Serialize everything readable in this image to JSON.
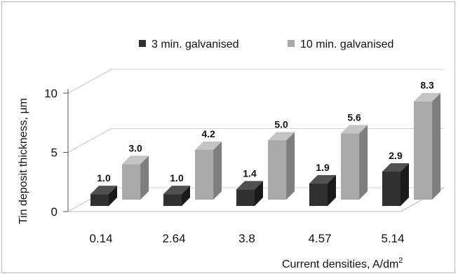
{
  "chart_data": {
    "type": "bar",
    "view": "3d-clustered-column",
    "categories": [
      "0.14",
      "2.64",
      "3.8",
      "4.57",
      "5.14"
    ],
    "series": [
      {
        "name": "3 min. galvanised",
        "values": [
          1.0,
          1.0,
          1.4,
          1.9,
          2.9
        ],
        "labels": [
          "1.0",
          "1.0",
          "1.4",
          "1.9",
          "2.9"
        ],
        "color": "#303030"
      },
      {
        "name": "10 min. galvanised",
        "values": [
          3.0,
          4.2,
          5.0,
          5.6,
          8.3
        ],
        "labels": [
          "3.0",
          "4.2",
          "5.0",
          "5.6",
          "8.3"
        ],
        "color": "#a9a9a9"
      }
    ],
    "yticks": [
      "0",
      "5",
      "10"
    ],
    "ylim": [
      0,
      10
    ],
    "ylabel": "Tin deposit thickness, µm",
    "xlabel_main": "Current densities, A/dm",
    "xlabel_sup": "2",
    "legend_position": "top-right",
    "grid": true
  }
}
